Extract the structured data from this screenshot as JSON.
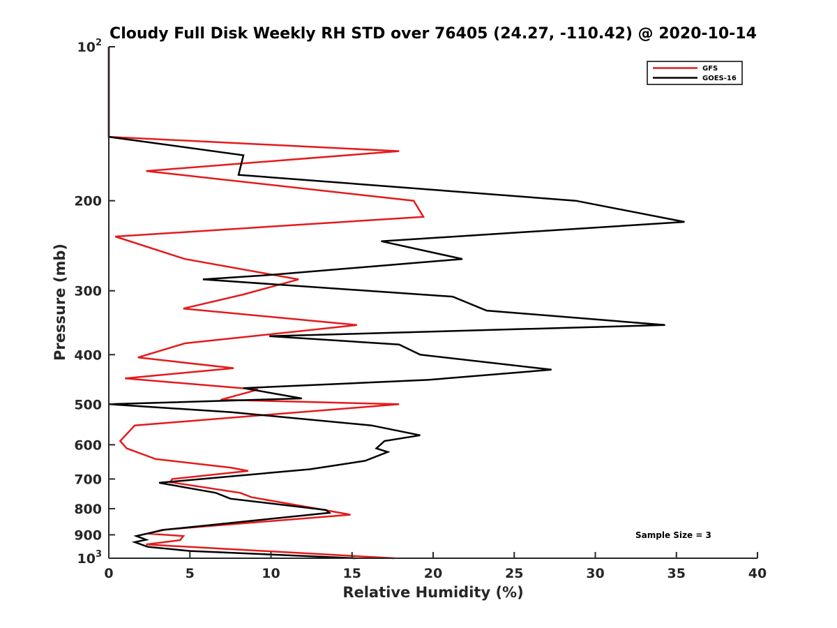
{
  "chart_data": {
    "type": "line",
    "title": "Cloudy Full Disk Weekly RH STD over 76405 (24.27, -110.42) @ 2020-10-14",
    "xlabel": "Relative Humidity (%)",
    "ylabel": "Pressure (mb)",
    "xlim": [
      0,
      40
    ],
    "ylim": [
      100,
      1000
    ],
    "yscale": "log",
    "yreversed": false,
    "x_ticks": [
      "0",
      "5",
      "10",
      "15",
      "20",
      "25",
      "30",
      "35",
      "40"
    ],
    "y_ticks": [
      {
        "value": 100,
        "label": "10",
        "sup": "2"
      },
      {
        "value": 200,
        "label": "200"
      },
      {
        "value": 300,
        "label": "300"
      },
      {
        "value": 400,
        "label": "400"
      },
      {
        "value": 500,
        "label": "500"
      },
      {
        "value": 600,
        "label": "600"
      },
      {
        "value": 700,
        "label": "700"
      },
      {
        "value": 800,
        "label": "800"
      },
      {
        "value": 900,
        "label": "900"
      },
      {
        "value": 1000,
        "label": "10",
        "sup": "3"
      }
    ],
    "grid": false,
    "legend_position": "top-right",
    "annotation": "Sample Size = 3",
    "series": [
      {
        "name": "GFS",
        "color": "#e41a1c",
        "points": [
          [
            0,
            100
          ],
          [
            0,
            112
          ],
          [
            0,
            125
          ],
          [
            0,
            137
          ],
          [
            0,
            150
          ],
          [
            17.9,
            160
          ],
          [
            2.3,
            175
          ],
          [
            18.8,
            200
          ],
          [
            19.4,
            215
          ],
          [
            0.4,
            235
          ],
          [
            4.7,
            260
          ],
          [
            11.7,
            285
          ],
          [
            8.3,
            305
          ],
          [
            4.6,
            325
          ],
          [
            15.3,
            350
          ],
          [
            4.7,
            380
          ],
          [
            1.8,
            405
          ],
          [
            7.7,
            425
          ],
          [
            1.0,
            445
          ],
          [
            9.2,
            468
          ],
          [
            6.9,
            490
          ],
          [
            17.9,
            500
          ],
          [
            1.6,
            550
          ],
          [
            0.7,
            590
          ],
          [
            1.1,
            610
          ],
          [
            2.9,
            640
          ],
          [
            7.5,
            665
          ],
          [
            8.6,
            675
          ],
          [
            3.9,
            700
          ],
          [
            3.8,
            710
          ],
          [
            8.1,
            745
          ],
          [
            8.8,
            760
          ],
          [
            13.3,
            805
          ],
          [
            14.9,
            822
          ],
          [
            3.3,
            880
          ],
          [
            2.4,
            895
          ],
          [
            4.6,
            905
          ],
          [
            4.4,
            922
          ],
          [
            2.3,
            940
          ],
          [
            17.6,
            1000
          ]
        ]
      },
      {
        "name": "GOES-16",
        "color": "#000000",
        "points": [
          [
            0,
            100
          ],
          [
            0,
            112
          ],
          [
            0,
            125
          ],
          [
            0,
            137
          ],
          [
            0,
            150
          ],
          [
            8.3,
            163
          ],
          [
            8.0,
            178
          ],
          [
            28.8,
            200
          ],
          [
            35.5,
            220
          ],
          [
            16.8,
            240
          ],
          [
            21.8,
            260
          ],
          [
            9.5,
            280
          ],
          [
            5.8,
            285
          ],
          [
            21.2,
            308
          ],
          [
            23.3,
            328
          ],
          [
            34.3,
            350
          ],
          [
            9.9,
            368
          ],
          [
            17.9,
            382
          ],
          [
            19.2,
            400
          ],
          [
            27.3,
            428
          ],
          [
            19.7,
            448
          ],
          [
            8.3,
            465
          ],
          [
            11.9,
            487
          ],
          [
            0,
            500
          ],
          [
            7.5,
            518
          ],
          [
            16.2,
            550
          ],
          [
            19.2,
            575
          ],
          [
            17.0,
            590
          ],
          [
            16.5,
            610
          ],
          [
            17.2,
            620
          ],
          [
            15.8,
            645
          ],
          [
            12.4,
            670
          ],
          [
            3.1,
            712
          ],
          [
            6.6,
            745
          ],
          [
            7.5,
            765
          ],
          [
            13.4,
            805
          ],
          [
            13.6,
            815
          ],
          [
            3.4,
            880
          ],
          [
            1.7,
            905
          ],
          [
            2.3,
            920
          ],
          [
            1.6,
            930
          ],
          [
            2.4,
            950
          ],
          [
            5.0,
            968
          ],
          [
            15.2,
            1000
          ]
        ]
      }
    ]
  }
}
